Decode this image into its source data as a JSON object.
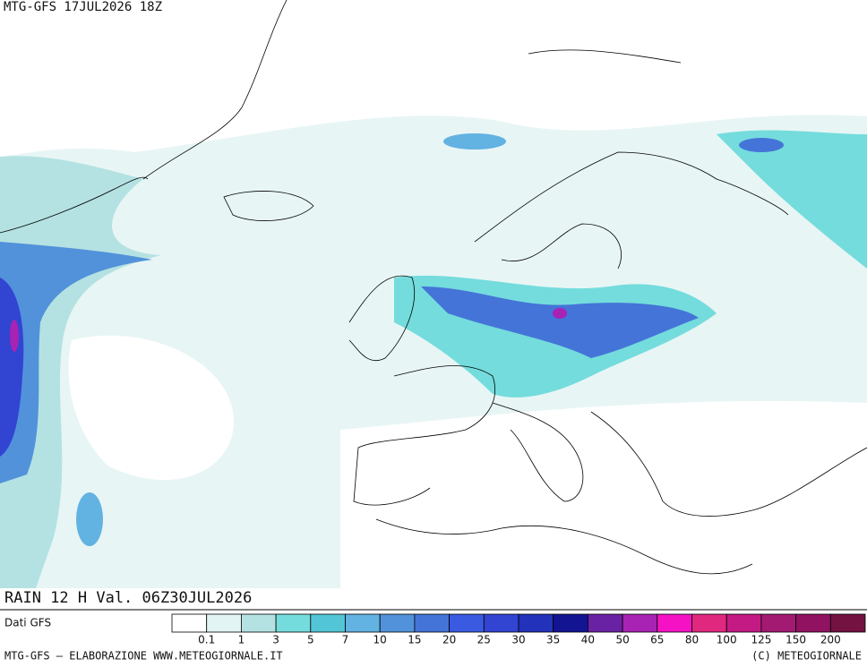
{
  "header": {
    "title": "MTG-GFS 17JUL2026 18Z"
  },
  "map": {
    "caption": "RAIN 12 H Val. 06Z30JUL2026"
  },
  "legend": {
    "source": "Dati GFS",
    "colors": [
      "#ffffff",
      "#e2f4f4",
      "#b4e2e2",
      "#74dcdc",
      "#52c6d6",
      "#62b2e2",
      "#5292da",
      "#4474d8",
      "#3a5ae2",
      "#3244d2",
      "#2232ba",
      "#121492",
      "#6a22a4",
      "#a822b4",
      "#f412c4",
      "#e0287e",
      "#c41a84",
      "#a21a72",
      "#921262",
      "#741242"
    ],
    "labels": [
      "0.1",
      "1",
      "3",
      "5",
      "7",
      "10",
      "15",
      "20",
      "25",
      "30",
      "35",
      "40",
      "50",
      "65",
      "80",
      "100",
      "125",
      "150",
      "200"
    ]
  },
  "footer": {
    "left": "MTG-GFS — ELABORAZIONE WWW.METEOGIORNALE.IT",
    "right": "(C) METEOGIORNALE"
  }
}
